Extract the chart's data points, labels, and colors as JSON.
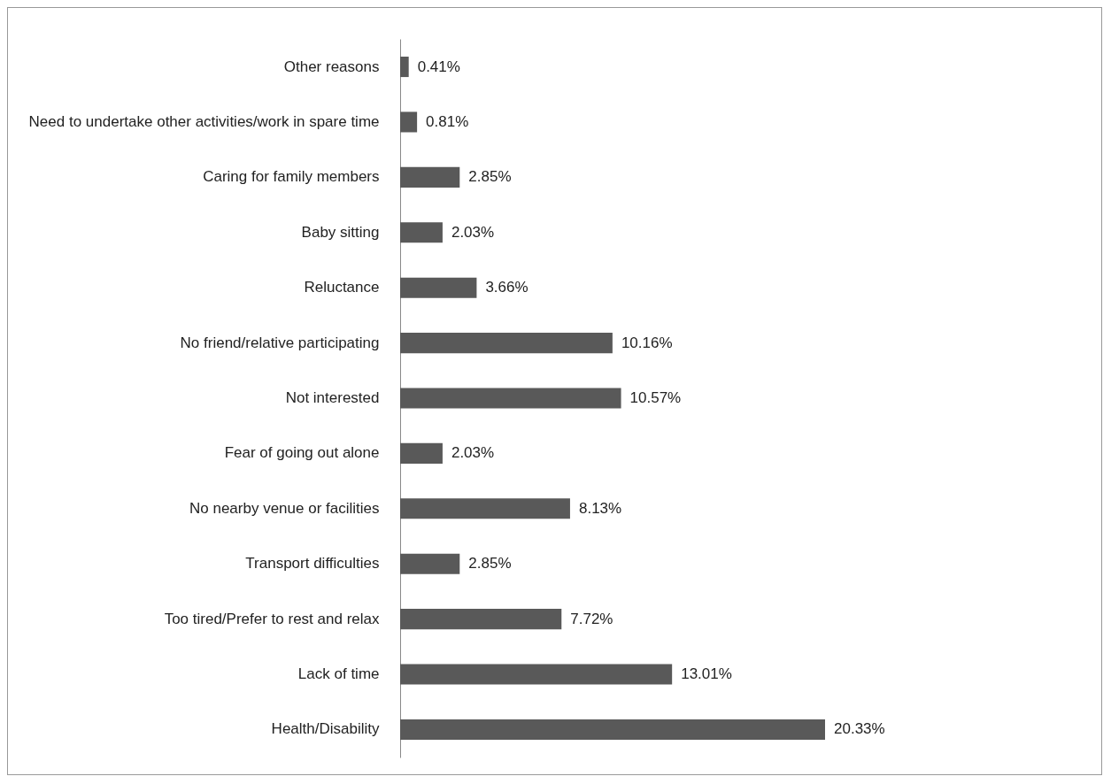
{
  "chart_data": {
    "type": "bar",
    "orientation": "horizontal",
    "categories": [
      "Other reasons",
      "Need to undertake other activities/work in spare time",
      "Caring for family members",
      "Baby sitting",
      "Reluctance",
      "No friend/relative participating",
      "Not interested",
      "Fear of going out alone",
      "No nearby venue or facilities",
      "Transport difficulties",
      "Too tired/Prefer to rest and relax",
      "Lack of time",
      "Health/Disability"
    ],
    "values": [
      0.41,
      0.81,
      2.85,
      2.03,
      3.66,
      10.16,
      10.57,
      2.03,
      8.13,
      2.85,
      7.72,
      13.01,
      20.33
    ],
    "value_labels": [
      "0.41%",
      "0.81%",
      "2.85%",
      "2.03%",
      "3.66%",
      "10.16%",
      "10.57%",
      "2.03%",
      "8.13%",
      "2.85%",
      "7.72%",
      "13.01%",
      "20.33%"
    ],
    "color": "#595959"
  }
}
